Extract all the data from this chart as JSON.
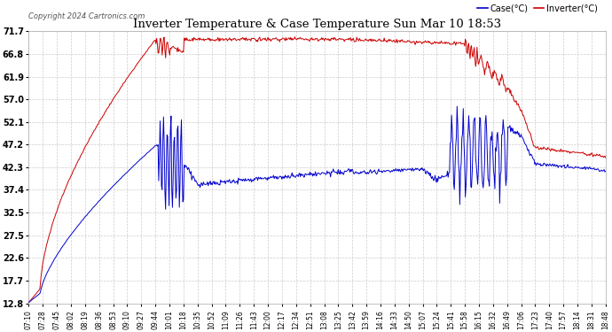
{
  "title": "Inverter Temperature & Case Temperature Sun Mar 10 18:53",
  "copyright": "Copyright 2024 Cartronics.com",
  "background_color": "#ffffff",
  "plot_bg_color": "#ffffff",
  "grid_color": "#cccccc",
  "yticks": [
    12.8,
    17.7,
    22.6,
    27.5,
    32.5,
    37.4,
    42.3,
    47.2,
    52.1,
    57.0,
    61.9,
    66.8,
    71.7
  ],
  "ymin": 12.8,
  "ymax": 71.7,
  "inverter_color": "#cc0000",
  "case_color": "#0000cc",
  "legend_case_label": "Case(°C)",
  "legend_inverter_label": "Inverter(°C)",
  "xtick_labels": [
    "07:10",
    "07:28",
    "07:45",
    "08:02",
    "08:19",
    "08:36",
    "08:53",
    "09:10",
    "09:27",
    "09:44",
    "10:01",
    "10:18",
    "10:35",
    "10:52",
    "11:09",
    "11:26",
    "11:43",
    "12:00",
    "12:17",
    "12:34",
    "12:51",
    "13:08",
    "13:25",
    "13:42",
    "13:59",
    "14:16",
    "14:33",
    "14:50",
    "15:07",
    "15:24",
    "15:41",
    "15:58",
    "16:15",
    "16:32",
    "16:49",
    "17:06",
    "17:23",
    "17:40",
    "17:57",
    "18:14",
    "18:31",
    "18:48"
  ],
  "n_points": 840
}
